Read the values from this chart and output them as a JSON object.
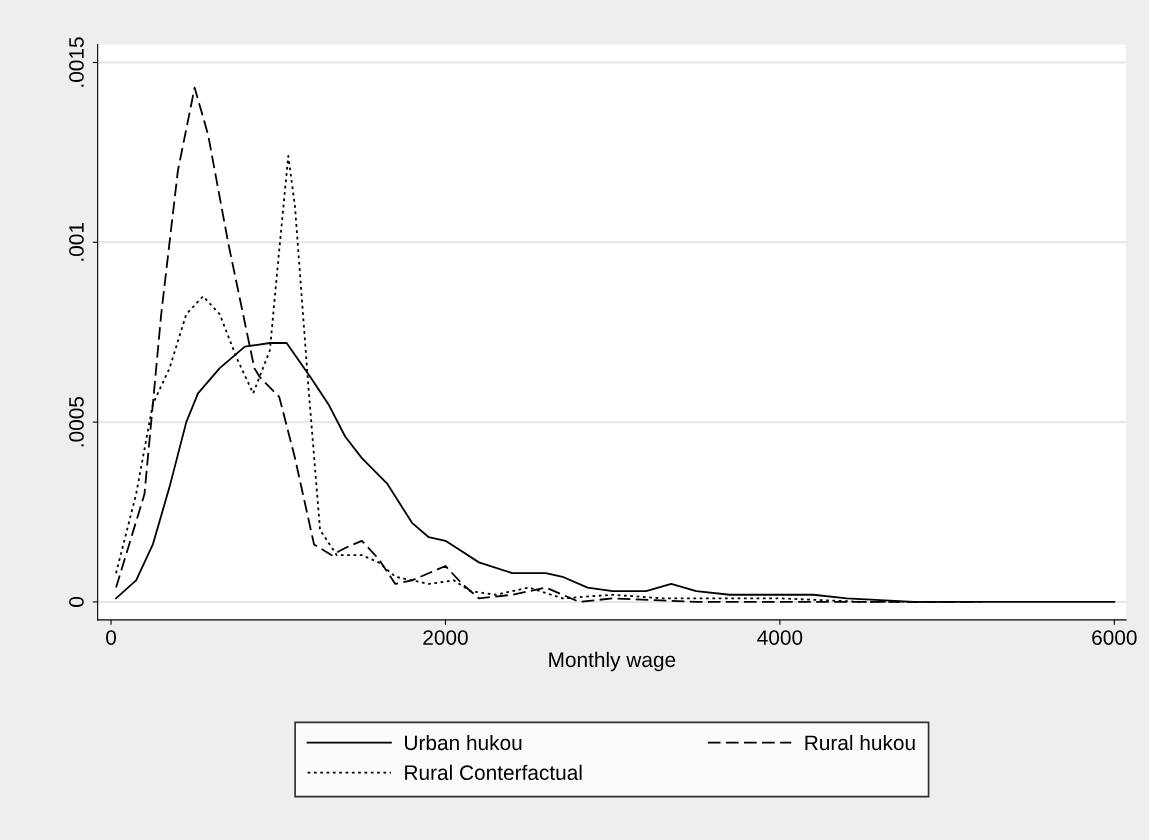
{
  "chart_data": {
    "type": "line",
    "xlabel": "Monthly wage",
    "xlim": [
      -80,
      6070
    ],
    "ylim": [
      -5e-05,
      0.00155
    ],
    "xticks": [
      0,
      2000,
      4000,
      6000
    ],
    "yticks": [
      {
        "value": 0,
        "label": "0"
      },
      {
        "value": 0.0005,
        "label": ".0005"
      },
      {
        "value": 0.001,
        "label": ".001"
      },
      {
        "value": 0.0015,
        "label": ".0015"
      }
    ],
    "grid": "y",
    "legend": "bottom",
    "marker": "none",
    "series": [
      {
        "name": "Urban hukou",
        "color": "#000000",
        "line_style": "solid",
        "x": [
          30,
          150,
          250,
          350,
          450,
          520,
          650,
          800,
          950,
          1050,
          1200,
          1300,
          1400,
          1500,
          1650,
          1800,
          1900,
          2000,
          2100,
          2200,
          2400,
          2600,
          2700,
          2850,
          3000,
          3200,
          3350,
          3500,
          3700,
          4000,
          4200,
          4400,
          4800,
          5000,
          5500,
          6000
        ],
        "values": [
          1e-05,
          6e-05,
          0.00016,
          0.00032,
          0.0005,
          0.00058,
          0.00065,
          0.00071,
          0.00072,
          0.00072,
          0.00062,
          0.00055,
          0.00046,
          0.0004,
          0.00033,
          0.00022,
          0.00018,
          0.00017,
          0.00014,
          0.00011,
          8e-05,
          8e-05,
          7e-05,
          4e-05,
          3e-05,
          3e-05,
          5e-05,
          3e-05,
          2e-05,
          2e-05,
          2e-05,
          1e-05,
          0,
          0,
          0,
          0
        ]
      },
      {
        "name": "Rural hukou",
        "color": "#000000",
        "line_style": "dashed",
        "x": [
          30,
          200,
          300,
          400,
          500,
          580,
          700,
          857,
          890,
          1006,
          1100,
          1214,
          1320,
          1400,
          1500,
          1600,
          1700,
          1800,
          2000,
          2100,
          2200,
          2400,
          2600,
          2800,
          3000,
          3500,
          4000,
          4500,
          5200
        ],
        "values": [
          4e-05,
          0.0003,
          0.0008,
          0.0012,
          0.00143,
          0.0013,
          0.001,
          0.00065,
          0.000625,
          0.00057,
          0.0004,
          0.00016,
          0.00013,
          0.00015,
          0.00017,
          0.00012,
          5e-05,
          6e-05,
          0.0001,
          5e-05,
          1e-05,
          2e-05,
          4e-05,
          0,
          1e-05,
          0,
          0,
          0,
          0
        ]
      },
      {
        "name": "Rural Conterfactual",
        "color": "#000000",
        "line_style": "dotted",
        "x": [
          30,
          150,
          250,
          350,
          450,
          550,
          650,
          750,
          850,
          950,
          1000,
          1060,
          1100,
          1180,
          1250,
          1350,
          1500,
          1600,
          1700,
          1900,
          2050,
          2150,
          2300,
          2500,
          2700,
          3000,
          3300,
          4000,
          4500,
          5000
        ],
        "values": [
          8e-05,
          0.0003,
          0.00055,
          0.00065,
          0.0008,
          0.00085,
          0.0008,
          0.00068,
          0.00058,
          0.0007,
          0.00095,
          0.00124,
          0.0011,
          0.0006,
          0.0002,
          0.00013,
          0.00013,
          0.00011,
          7e-05,
          5e-05,
          6e-05,
          3e-05,
          2e-05,
          4e-05,
          1e-05,
          2e-05,
          1e-05,
          1e-05,
          0,
          0
        ]
      }
    ]
  }
}
